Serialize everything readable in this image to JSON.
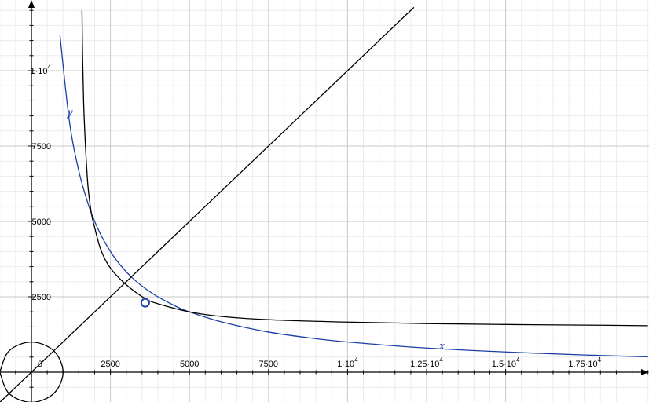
{
  "chart_data": {
    "type": "line",
    "title": "",
    "xlabel": "",
    "ylabel": "",
    "xlim": [
      -1000,
      19600
    ],
    "ylim": [
      -1000,
      12100
    ],
    "grid": true,
    "x_ticks": [
      {
        "value": 2500,
        "base": "2500",
        "exp": ""
      },
      {
        "value": 5000,
        "base": "5000",
        "exp": ""
      },
      {
        "value": 7500,
        "base": "7500",
        "exp": ""
      },
      {
        "value": 10000,
        "base": "1·10",
        "exp": "4"
      },
      {
        "value": 12500,
        "base": "1.25·10",
        "exp": "4"
      },
      {
        "value": 15000,
        "base": "1.5·10",
        "exp": "4"
      },
      {
        "value": 17500,
        "base": "1.75·10",
        "exp": "4"
      }
    ],
    "y_ticks": [
      {
        "value": 2500,
        "base": "2500",
        "exp": ""
      },
      {
        "value": 5000,
        "base": "5000",
        "exp": ""
      },
      {
        "value": 7500,
        "base": "7500",
        "exp": ""
      },
      {
        "value": 10000,
        "base": "1·10",
        "exp": "4"
      }
    ],
    "origin_label": "0",
    "series": [
      {
        "id": "blue-curve",
        "color": "#1a3fa6",
        "x": [
          900,
          1200,
          1500,
          1800,
          2000,
          2300,
          2700,
          3200,
          3800,
          4500,
          5000,
          6000,
          7500,
          9000,
          10000,
          12500,
          15000,
          17500,
          19500
        ],
        "y": [
          11200,
          8330,
          6670,
          5560,
          5000,
          4350,
          3700,
          3120,
          2630,
          2220,
          2000,
          1670,
          1330,
          1110,
          1000,
          800,
          670,
          570,
          510
        ]
      },
      {
        "id": "black-curve",
        "color": "#000000",
        "x": [
          1600,
          1620,
          1650,
          1700,
          1750,
          1800,
          1900,
          2000,
          2200,
          2500,
          3000,
          3600,
          4000,
          5000,
          6000,
          7500,
          10000,
          12500,
          15000,
          17500,
          19500
        ],
        "y": [
          12000,
          10400,
          9000,
          7700,
          6760,
          6050,
          5250,
          4800,
          4050,
          3450,
          2900,
          2440,
          2270,
          2000,
          1850,
          1740,
          1660,
          1610,
          1580,
          1560,
          1540
        ]
      },
      {
        "id": "diagonal-line",
        "color": "#000000",
        "x": [
          -1000,
          12100
        ],
        "y": [
          -1000,
          12100
        ]
      },
      {
        "id": "circle-arc",
        "color": "#000000",
        "x": [
          -1000,
          -707,
          0,
          707,
          1000,
          707,
          0,
          -707,
          -1000
        ],
        "y": [
          0,
          707,
          1000,
          707,
          0,
          -707,
          -1000,
          -707,
          0
        ]
      }
    ],
    "point": {
      "x": 3600,
      "y": 2300,
      "color": "#1a3fa6"
    },
    "annotations": [
      {
        "text": "y",
        "x": 1150,
        "y": 8500
      },
      {
        "text": "x",
        "x": 12900,
        "y": 750
      }
    ]
  }
}
